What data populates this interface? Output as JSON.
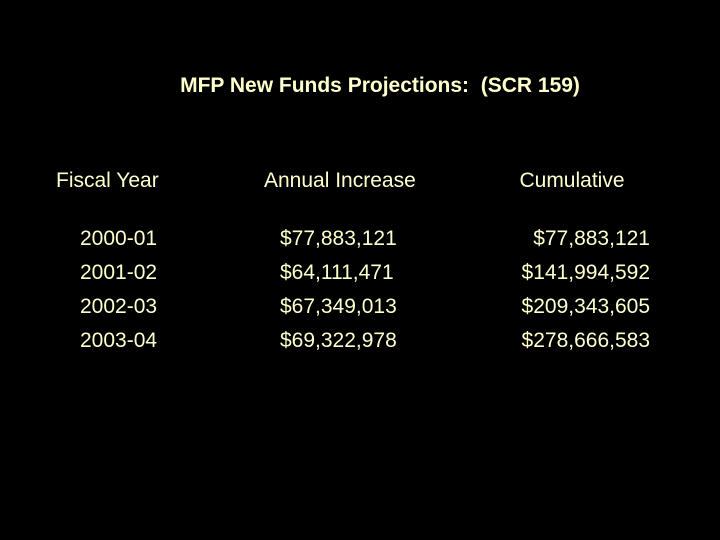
{
  "slide": {
    "title": "MFP New Funds Projections:  (SCR 159)",
    "columns": {
      "fiscal_year": "Fiscal Year",
      "annual_increase": "Annual Increase",
      "cumulative": "Cumulative"
    },
    "rows": [
      {
        "fiscal_year": "2000-01",
        "annual_increase": "$77,883,121",
        "cumulative": "$77,883,121"
      },
      {
        "fiscal_year": "2001-02",
        "annual_increase": "$64,111,471",
        "cumulative": "$141,994,592"
      },
      {
        "fiscal_year": "2002-03",
        "annual_increase": "$67,349,013",
        "cumulative": "$209,343,605"
      },
      {
        "fiscal_year": "2003-04",
        "annual_increase": "$69,322,978",
        "cumulative": "$278,666,583"
      }
    ],
    "colors": {
      "background": "#000000",
      "text": "#FFFFCC"
    }
  }
}
